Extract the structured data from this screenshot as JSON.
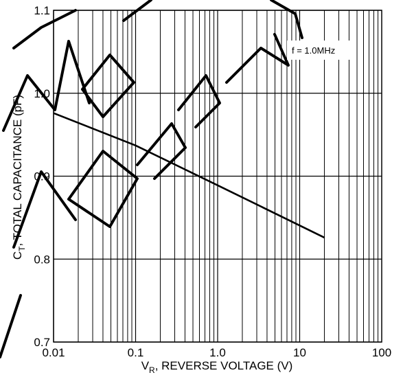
{
  "chart_data": {
    "type": "line",
    "xscale": "log",
    "xlim": [
      0.01,
      100
    ],
    "ylim": [
      0.7,
      1.1
    ],
    "x_ticks": [
      "0.01",
      "0.1",
      "1.0",
      "10",
      "100"
    ],
    "y_ticks": [
      "0.7",
      "0.8",
      "0.9",
      "1.0",
      "1.1"
    ],
    "xlabel": "V",
    "xlabel_sub": "R",
    "xlabel_rest": ", REVERSE VOLTAGE (V)",
    "ylabel": "C",
    "ylabel_sub": "T",
    "ylabel_rest": ", TOTAL CAPACITANCE (pF)",
    "annotation": "f = 1.0MHz",
    "grid": true,
    "series": [
      {
        "x": [
          0.01,
          0.1,
          1.0,
          20
        ],
        "y": [
          0.976,
          0.937,
          0.889,
          0.826
        ]
      }
    ]
  }
}
